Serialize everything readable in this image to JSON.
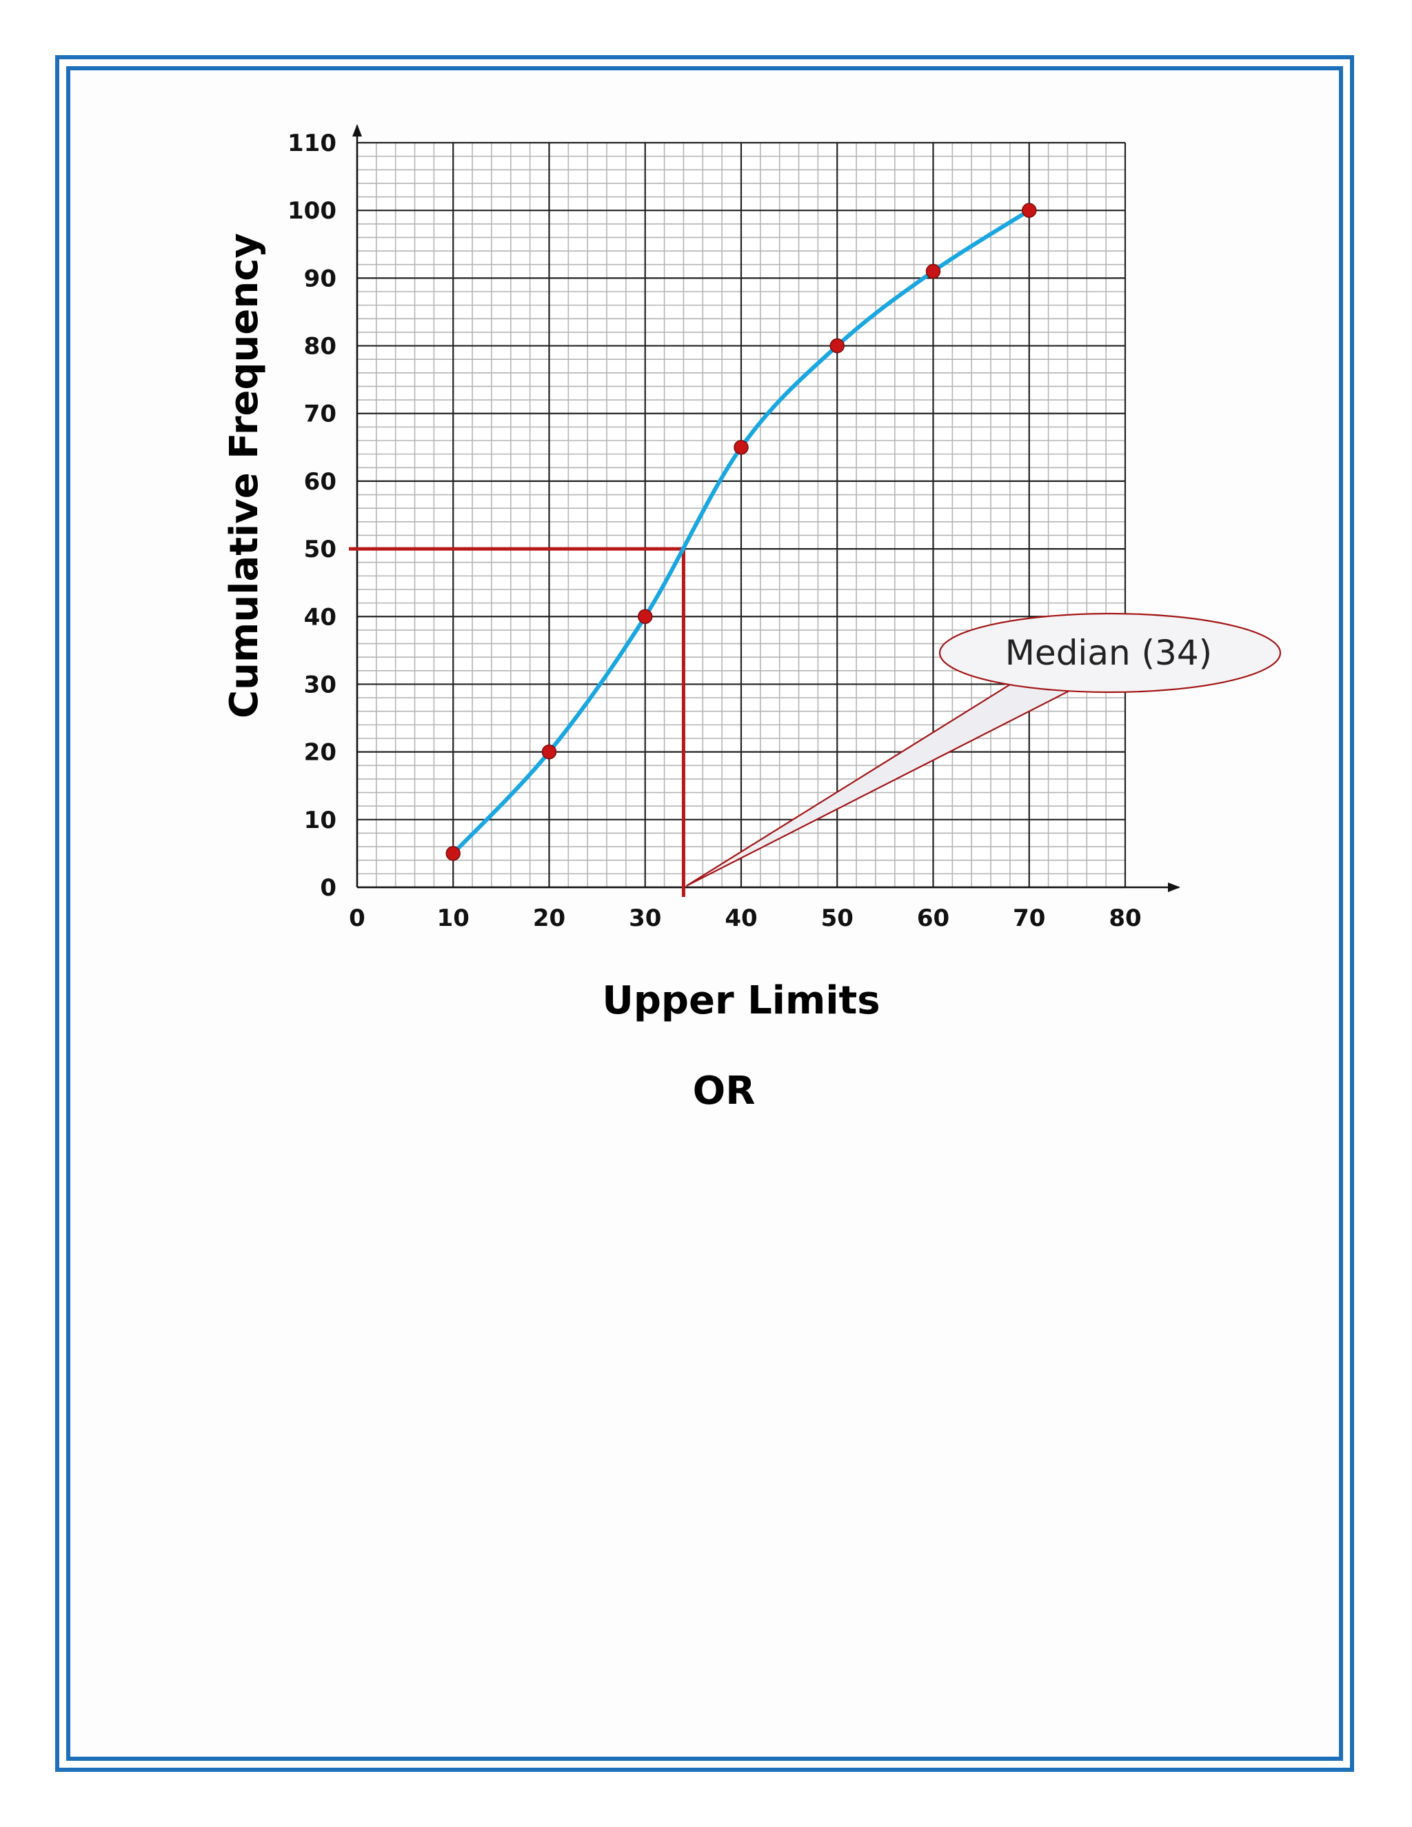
{
  "chart_data": {
    "type": "line",
    "title": "",
    "xlabel": "Upper Limits",
    "ylabel": "Cumulative Frequency",
    "xlim": [
      0,
      80
    ],
    "ylim": [
      0,
      110
    ],
    "x_ticks": [
      0,
      10,
      20,
      30,
      40,
      50,
      60,
      70,
      80
    ],
    "y_ticks": [
      0,
      10,
      20,
      30,
      40,
      50,
      60,
      70,
      80,
      90,
      100,
      110
    ],
    "grid": true,
    "series": [
      {
        "x": [
          10,
          20,
          30,
          40,
          50,
          60,
          70
        ],
        "y": [
          5,
          20,
          40,
          65,
          80,
          91,
          100
        ]
      }
    ],
    "median_guide": {
      "y": 50,
      "x": 34
    },
    "annotation": "Median (34)",
    "colors": {
      "curve": "#1aa7e0",
      "points": "#c81414",
      "guide": "#b91818",
      "grid_major": "#222222",
      "grid_minor": "#b5b5b5",
      "frame": "#1c6fb8"
    }
  },
  "footer_text": "OR"
}
